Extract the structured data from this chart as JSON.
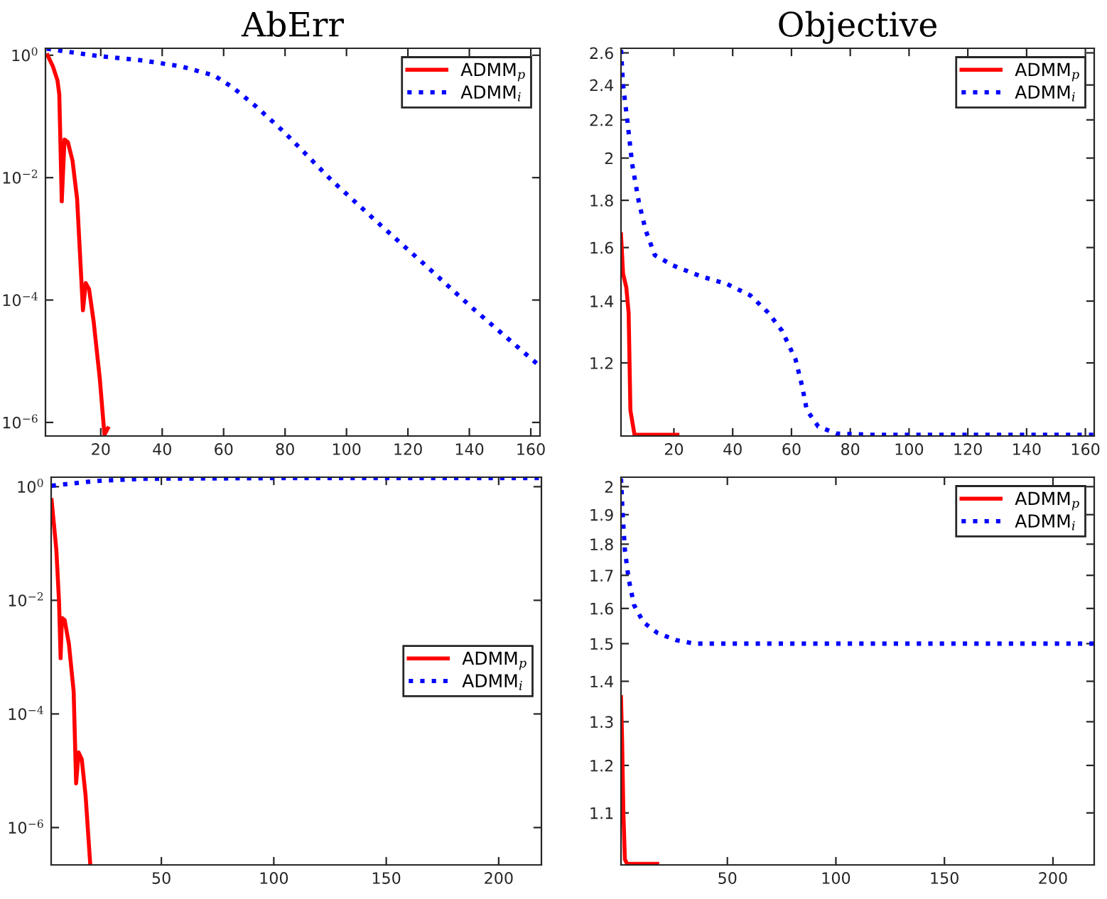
{
  "chart_data": [
    {
      "type": "line",
      "title": "AbErr",
      "log": "y",
      "legend": "top right",
      "grid": false,
      "xlim": [
        2,
        163
      ],
      "xticks": [
        20,
        40,
        60,
        80,
        100,
        120,
        140,
        160
      ],
      "ylim": [
        6e-07,
        1.3
      ],
      "yticks": [
        {
          "value": 1,
          "label": "10$^{0}$"
        },
        {
          "value": 0.01,
          "label": "10$^{−2}$"
        },
        {
          "value": 0.0001,
          "label": "10$^{−4}$"
        },
        {
          "value": 1e-06,
          "label": "10$^{−6}$"
        }
      ],
      "series": [
        {
          "name": "ADMM$_{p}$",
          "color": "#ff0000",
          "line_style": "solid",
          "x": [
            2.7,
            4.4,
            5.9,
            6.5,
            7.3,
            8.2,
            9.3,
            10.8,
            12.3,
            14.2,
            15.1,
            16.2,
            17.7,
            19.7,
            21.2,
            22.3
          ],
          "values": [
            1,
            0.66,
            0.39,
            0.23,
            0.0041,
            0.042,
            0.038,
            0.019,
            0.0045,
            6.8e-05,
            0.00019,
            0.00015,
            4.4e-05,
            5.1e-06,
            6.3e-07,
            8e-07
          ]
        },
        {
          "name": "ADMM$_{i}$",
          "color": "#0000ff",
          "line_style": "dotted",
          "x": [
            2.4,
            18.5,
            33.8,
            46,
            56.8,
            62.9,
            70.6,
            79.8,
            95.1,
            110.4,
            125.7,
            141,
            162.5
          ],
          "values": [
            1.28,
            0.98,
            0.82,
            0.66,
            0.47,
            0.3,
            0.145,
            0.055,
            0.0091,
            0.0018,
            0.00037,
            7.4e-05,
            8.7e-06
          ]
        }
      ]
    },
    {
      "type": "line",
      "title": "Objective",
      "log": "y",
      "legend": "top right",
      "grid": false,
      "xlim": [
        2,
        163
      ],
      "xticks": [
        20,
        40,
        60,
        80,
        100,
        120,
        140,
        160
      ],
      "ylim": [
        1.0,
        2.63
      ],
      "yticks": [
        1.2,
        1.4,
        1.6,
        1.8,
        2,
        2.2,
        2.4,
        2.6
      ],
      "series": [
        {
          "name": "ADMM$_{p}$",
          "color": "#ff0000",
          "line_style": "solid",
          "x": [
            2,
            2.7,
            3.8,
            4.6,
            5.2,
            6.6,
            21.2
          ],
          "values": [
            1.654,
            1.5,
            1.449,
            1.359,
            1.066,
            1.003,
            1.003
          ]
        },
        {
          "name": "ADMM$_{i}$",
          "color": "#0000ff",
          "line_style": "dotted",
          "x": [
            2,
            2.7,
            4.2,
            5.8,
            8.1,
            10.4,
            13.5,
            19.7,
            29,
            38.2,
            46,
            52.1,
            56.8,
            61.4,
            63.7,
            65.2,
            69.1,
            75.3,
            87.6,
            163
          ],
          "values": [
            2.62,
            2.4,
            2.19,
            1.97,
            1.79,
            1.67,
            1.57,
            1.53,
            1.49,
            1.46,
            1.42,
            1.36,
            1.3,
            1.21,
            1.13,
            1.067,
            1.024,
            1.006,
            1.003,
            1.003
          ]
        }
      ]
    },
    {
      "type": "line",
      "log": "y",
      "legend": "right",
      "grid": false,
      "xlim": [
        1,
        219
      ],
      "xticks": [
        50,
        100,
        150,
        200
      ],
      "ylim": [
        2.2e-07,
        1.47
      ],
      "yticks": [
        {
          "value": 1,
          "label": "10$^{0}$"
        },
        {
          "value": 0.01,
          "label": "10$^{−2}$"
        },
        {
          "value": 0.0001,
          "label": "10$^{−4}$"
        },
        {
          "value": 1e-06,
          "label": "10$^{−6}$"
        }
      ],
      "series": [
        {
          "name": "ADMM$_{p}$",
          "color": "#ff0000",
          "line_style": "solid",
          "x": [
            1.2,
            3.3,
            4.5,
            5.2,
            5.8,
            7.0,
            8.9,
            11,
            12.1,
            13.2,
            14.6,
            16.3,
            18.4
          ],
          "values": [
            0.58,
            0.078,
            0.0096,
            0.00096,
            0.0049,
            0.0045,
            0.0017,
            0.00025,
            6e-06,
            2.1e-05,
            1.6e-05,
            3.7e-06,
            2.2e-07
          ]
        },
        {
          "name": "ADMM$_{i}$",
          "color": "#0000ff",
          "line_style": "dotted",
          "x": [
            1.2,
            20.5,
            41.6,
            105,
            219
          ],
          "values": [
            1.04,
            1.26,
            1.38,
            1.42,
            1.42
          ]
        }
      ]
    },
    {
      "type": "line",
      "log": "y",
      "legend": "top right",
      "grid": false,
      "xlim": [
        1,
        219
      ],
      "xticks": [
        50,
        100,
        150,
        200
      ],
      "ylim": [
        1.0,
        2.035
      ],
      "yticks": [
        1.1,
        1.2,
        1.3,
        1.4,
        1.5,
        1.6,
        1.7,
        1.8,
        1.9,
        2
      ],
      "series": [
        {
          "name": "ADMM$_{p}$",
          "color": "#ff0000",
          "line_style": "solid",
          "x": [
            1,
            1.5,
            2.1,
            2.8,
            3.8,
            17.7
          ],
          "values": [
            1.36,
            1.26,
            1.1,
            1.01,
            1.002,
            1.002
          ]
        },
        {
          "name": "ADMM$_{i}$",
          "color": "#0000ff",
          "line_style": "dotted",
          "x": [
            1,
            1.7,
            2.8,
            4.5,
            7.0,
            11.3,
            17.7,
            26.2,
            34.7,
            219
          ],
          "values": [
            2.03,
            1.91,
            1.78,
            1.69,
            1.61,
            1.56,
            1.53,
            1.51,
            1.5,
            1.5
          ]
        }
      ]
    }
  ]
}
